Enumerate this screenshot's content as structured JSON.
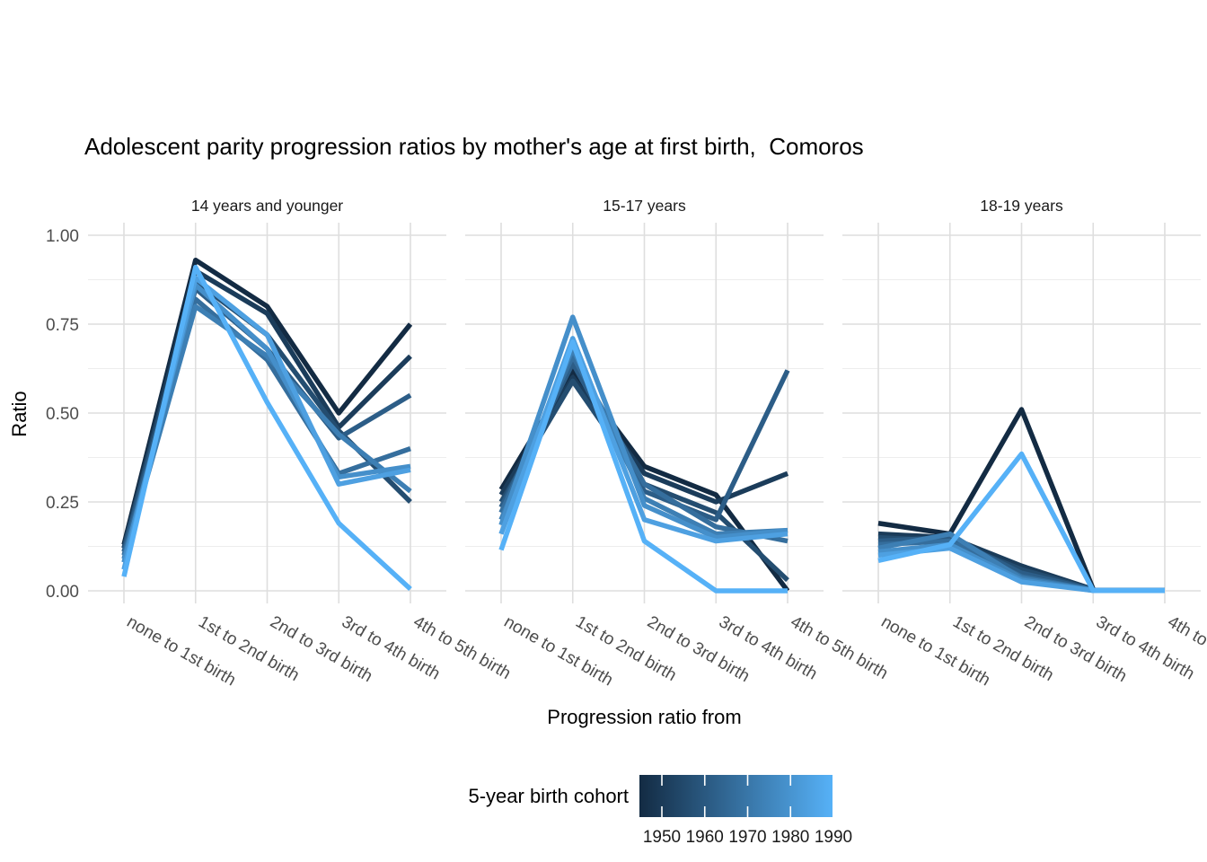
{
  "title": "Adolescent parity progression ratios by mother's age at first birth,  Comoros",
  "y_axis": {
    "label": "Ratio",
    "ticks": [
      "1.00",
      "0.75",
      "0.50",
      "0.25",
      "0.00"
    ]
  },
  "x_axis": {
    "label": "Progression ratio from"
  },
  "legend": {
    "title": "5-year birth cohort",
    "tick_labels": [
      "1950",
      "1960",
      "1970",
      "1980",
      "1990"
    ],
    "gradient": [
      "#132B43",
      "#56B1F7"
    ]
  },
  "chart_data": {
    "type": "line",
    "title": "Adolescent parity progression ratios by mother's age at first birth,  Comoros",
    "facets": [
      "14 years and younger",
      "15-17 years",
      "18-19 years"
    ],
    "categories": [
      "none to 1st birth",
      "1st to 2nd birth",
      "2nd to 3rd birth",
      "3rd to 4th birth",
      "4th to 5th birth"
    ],
    "xlabel": "Progression ratio from",
    "ylabel": "Ratio",
    "ylim": [
      0,
      1
    ],
    "y_ticks": [
      0,
      0.25,
      0.5,
      0.75,
      1
    ],
    "grid": true,
    "legend_position": "bottom",
    "color_scale": {
      "name": "5-year birth cohort",
      "low": "#132B43",
      "high": "#56B1F7",
      "breaks": [
        1950,
        1960,
        1970,
        1980,
        1990
      ]
    },
    "series": [
      {
        "cohort": 1950,
        "color": "#132B43",
        "values": [
          [
            0.13,
            0.93,
            0.8,
            0.5,
            0.75
          ],
          [
            0.285,
            0.62,
            0.35,
            0.27,
            0.0
          ],
          [
            0.19,
            0.16,
            0.51,
            0.005,
            null
          ]
        ]
      },
      {
        "cohort": 1955,
        "color": "#1B3C5A",
        "values": [
          [
            0.12,
            0.9,
            0.78,
            0.46,
            0.66
          ],
          [
            0.27,
            0.6,
            0.33,
            0.25,
            0.33
          ],
          [
            0.16,
            0.15,
            0.07,
            0.004,
            null
          ]
        ]
      },
      {
        "cohort": 1960,
        "color": "#244D70",
        "values": [
          [
            0.12,
            0.87,
            0.72,
            0.45,
            0.25
          ],
          [
            0.25,
            0.59,
            0.3,
            0.22,
            0.03
          ],
          [
            0.15,
            0.14,
            0.06,
            0.003,
            null
          ]
        ]
      },
      {
        "cohort": 1965,
        "color": "#2C5D87",
        "values": [
          [
            0.11,
            0.85,
            0.68,
            0.43,
            0.55
          ],
          [
            0.235,
            0.64,
            0.28,
            0.2,
            0.62
          ],
          [
            0.14,
            0.15,
            0.05,
            0.003,
            null
          ]
        ]
      },
      {
        "cohort": 1970,
        "color": "#356E9D",
        "values": [
          [
            0.1,
            0.82,
            0.65,
            0.33,
            0.4
          ],
          [
            0.22,
            0.66,
            0.3,
            0.18,
            0.14
          ],
          [
            0.13,
            0.14,
            0.04,
            0.002,
            0.002
          ]
        ]
      },
      {
        "cohort": 1975,
        "color": "#3D7FB4",
        "values": [
          [
            0.09,
            0.8,
            0.66,
            0.44,
            0.28
          ],
          [
            0.2,
            0.68,
            0.26,
            0.16,
            0.17
          ],
          [
            0.12,
            0.16,
            0.035,
            0.002,
            0.002
          ]
        ]
      },
      {
        "cohort": 1980,
        "color": "#458FCA",
        "values": [
          [
            0.08,
            0.86,
            0.68,
            0.32,
            0.35
          ],
          [
            0.185,
            0.77,
            0.24,
            0.15,
            0.17
          ],
          [
            0.11,
            0.13,
            0.03,
            0.001,
            0.001
          ]
        ]
      },
      {
        "cohort": 1985,
        "color": "#4EA0E1",
        "values": [
          [
            0.06,
            0.88,
            0.72,
            0.3,
            0.34
          ],
          [
            0.16,
            0.71,
            0.2,
            0.14,
            0.16
          ],
          [
            0.1,
            0.12,
            0.025,
            0.001,
            0.001
          ]
        ]
      },
      {
        "cohort": 1990,
        "color": "#56B1F7",
        "values": [
          [
            0.04,
            0.91,
            0.53,
            0.19,
            0.005
          ],
          [
            0.115,
            0.7,
            0.14,
            0.0,
            0.0
          ],
          [
            0.085,
            0.13,
            0.385,
            0.001,
            0.001
          ]
        ]
      }
    ]
  }
}
